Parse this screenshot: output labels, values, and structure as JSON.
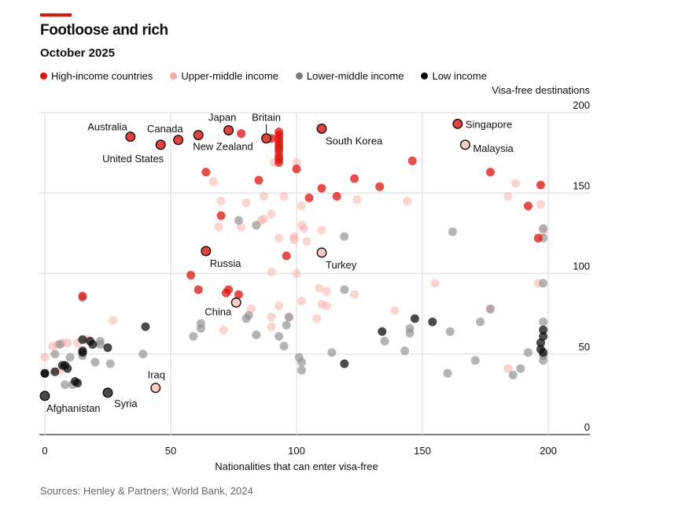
{
  "header": {
    "title": "Footloose and rich",
    "subtitle": "October 2025"
  },
  "legend": [
    {
      "key": "high",
      "label": "High-income countries",
      "color": "#e3120b"
    },
    {
      "key": "upper",
      "label": "Upper-middle income",
      "color": "#f7a99f"
    },
    {
      "key": "lower",
      "label": "Lower-middle income",
      "color": "#8c8c8c"
    },
    {
      "key": "low",
      "label": "Low income",
      "color": "#0d0d0d"
    }
  ],
  "source": "Sources: Henley & Partners; World Bank, 2024",
  "chart_data": {
    "type": "scatter",
    "title": "Footloose and rich",
    "subtitle": "October 2025",
    "xlabel": "Nationalities that can enter visa-free",
    "ylabel": "Visa-free destinations",
    "xlim": [
      -2,
      217
    ],
    "ylim": [
      0,
      200
    ],
    "xticks": [
      0,
      50,
      100,
      150,
      200
    ],
    "yticks": [
      0,
      50,
      100,
      150,
      200
    ],
    "grid": true,
    "legend_position": "top-left",
    "colors": {
      "high": "#e3120b",
      "upper": "#f7a99f",
      "lower": "#8c8c8c",
      "low": "#0d0d0d"
    },
    "highlighted": [
      {
        "name": "Australia",
        "x": 34,
        "y": 185,
        "group": "high",
        "label_pos": "above-left"
      },
      {
        "name": "United States",
        "x": 46,
        "y": 180,
        "group": "high",
        "label_pos": "below-left"
      },
      {
        "name": "Canada",
        "x": 53,
        "y": 183,
        "group": "high",
        "label_pos": "above-left"
      },
      {
        "name": "New Zealand",
        "x": 61,
        "y": 186,
        "group": "high",
        "label_pos": "below-right"
      },
      {
        "name": "Japan",
        "x": 73,
        "y": 189,
        "group": "high",
        "label_pos": "above"
      },
      {
        "name": "Britain",
        "x": 88,
        "y": 184,
        "group": "high",
        "label_pos": "above-leader"
      },
      {
        "name": "South Korea",
        "x": 110,
        "y": 190,
        "group": "high",
        "label_pos": "below-right"
      },
      {
        "name": "Singapore",
        "x": 164,
        "y": 193,
        "group": "high",
        "label_pos": "right"
      },
      {
        "name": "Malaysia",
        "x": 167,
        "y": 180,
        "group": "upper",
        "label_pos": "right"
      },
      {
        "name": "Russia",
        "x": 64,
        "y": 114,
        "group": "high",
        "label_pos": "below-right"
      },
      {
        "name": "Turkey",
        "x": 110,
        "y": 113,
        "group": "upper",
        "label_pos": "below-right"
      },
      {
        "name": "China",
        "x": 76,
        "y": 82,
        "group": "upper",
        "label_pos": "below-left"
      },
      {
        "name": "Iraq",
        "x": 44,
        "y": 29,
        "group": "upper",
        "label_pos": "above"
      },
      {
        "name": "Afghanistan",
        "x": 0,
        "y": 24,
        "group": "low",
        "label_pos": "below-right"
      },
      {
        "name": "Syria",
        "x": 25,
        "y": 26,
        "group": "low",
        "label_pos": "below-right"
      }
    ],
    "points": [
      {
        "x": 78,
        "y": 187,
        "g": "high"
      },
      {
        "x": 90,
        "y": 184,
        "g": "high"
      },
      {
        "x": 93,
        "y": 188,
        "g": "high"
      },
      {
        "x": 93,
        "y": 186,
        "g": "high"
      },
      {
        "x": 93,
        "y": 184,
        "g": "high"
      },
      {
        "x": 93,
        "y": 182,
        "g": "high"
      },
      {
        "x": 93,
        "y": 180,
        "g": "high"
      },
      {
        "x": 93,
        "y": 178,
        "g": "high"
      },
      {
        "x": 93,
        "y": 176,
        "g": "high"
      },
      {
        "x": 93,
        "y": 173,
        "g": "high"
      },
      {
        "x": 93,
        "y": 171,
        "g": "high"
      },
      {
        "x": 93,
        "y": 169,
        "g": "high"
      },
      {
        "x": 91,
        "y": 169,
        "g": "upper"
      },
      {
        "x": 100,
        "y": 169,
        "g": "upper"
      },
      {
        "x": 100,
        "y": 165,
        "g": "high"
      },
      {
        "x": 64,
        "y": 163,
        "g": "high"
      },
      {
        "x": 67,
        "y": 157,
        "g": "upper"
      },
      {
        "x": 85,
        "y": 158,
        "g": "high"
      },
      {
        "x": 146,
        "y": 170,
        "g": "high"
      },
      {
        "x": 123,
        "y": 159,
        "g": "high"
      },
      {
        "x": 110,
        "y": 153,
        "g": "high"
      },
      {
        "x": 133,
        "y": 154,
        "g": "high"
      },
      {
        "x": 177,
        "y": 163,
        "g": "high"
      },
      {
        "x": 187,
        "y": 156,
        "g": "upper"
      },
      {
        "x": 197,
        "y": 155,
        "g": "high"
      },
      {
        "x": 184,
        "y": 148,
        "g": "upper"
      },
      {
        "x": 192,
        "y": 142,
        "g": "high"
      },
      {
        "x": 197,
        "y": 143,
        "g": "upper"
      },
      {
        "x": 105,
        "y": 147,
        "g": "high"
      },
      {
        "x": 116,
        "y": 148,
        "g": "high"
      },
      {
        "x": 124,
        "y": 146,
        "g": "upper"
      },
      {
        "x": 144,
        "y": 145,
        "g": "upper"
      },
      {
        "x": 87,
        "y": 148,
        "g": "upper"
      },
      {
        "x": 95,
        "y": 148,
        "g": "upper"
      },
      {
        "x": 70,
        "y": 145,
        "g": "upper"
      },
      {
        "x": 80,
        "y": 144,
        "g": "upper"
      },
      {
        "x": 102,
        "y": 142,
        "g": "upper"
      },
      {
        "x": 70,
        "y": 136,
        "g": "high"
      },
      {
        "x": 90,
        "y": 137,
        "g": "upper"
      },
      {
        "x": 87,
        "y": 134,
        "g": "upper"
      },
      {
        "x": 86,
        "y": 133,
        "g": "upper"
      },
      {
        "x": 77,
        "y": 133,
        "g": "lower"
      },
      {
        "x": 84,
        "y": 130,
        "g": "lower"
      },
      {
        "x": 69,
        "y": 129,
        "g": "upper"
      },
      {
        "x": 78,
        "y": 129,
        "g": "upper"
      },
      {
        "x": 102,
        "y": 130,
        "g": "upper"
      },
      {
        "x": 103,
        "y": 128,
        "g": "upper"
      },
      {
        "x": 110,
        "y": 127,
        "g": "upper"
      },
      {
        "x": 119,
        "y": 123,
        "g": "lower"
      },
      {
        "x": 162,
        "y": 126,
        "g": "lower"
      },
      {
        "x": 93,
        "y": 122,
        "g": "upper"
      },
      {
        "x": 99,
        "y": 123,
        "g": "upper"
      },
      {
        "x": 99,
        "y": 121,
        "g": "upper"
      },
      {
        "x": 104,
        "y": 120,
        "g": "upper"
      },
      {
        "x": 196,
        "y": 122,
        "g": "high"
      },
      {
        "x": 198,
        "y": 128,
        "g": "lower"
      },
      {
        "x": 198,
        "y": 126,
        "g": "upper"
      },
      {
        "x": 198,
        "y": 122,
        "g": "lower"
      },
      {
        "x": 96,
        "y": 111,
        "g": "high"
      },
      {
        "x": 58,
        "y": 99,
        "g": "high"
      },
      {
        "x": 100,
        "y": 100,
        "g": "upper"
      },
      {
        "x": 90,
        "y": 101,
        "g": "upper"
      },
      {
        "x": 61,
        "y": 90,
        "g": "high"
      },
      {
        "x": 72,
        "y": 88,
        "g": "high"
      },
      {
        "x": 73,
        "y": 90,
        "g": "high"
      },
      {
        "x": 77,
        "y": 87,
        "g": "high"
      },
      {
        "x": 109,
        "y": 91,
        "g": "upper"
      },
      {
        "x": 119,
        "y": 90,
        "g": "lower"
      },
      {
        "x": 112,
        "y": 89,
        "g": "upper"
      },
      {
        "x": 123,
        "y": 87,
        "g": "upper"
      },
      {
        "x": 155,
        "y": 94,
        "g": "upper"
      },
      {
        "x": 196,
        "y": 94,
        "g": "upper"
      },
      {
        "x": 198,
        "y": 94,
        "g": "lower"
      },
      {
        "x": 15,
        "y": 86,
        "g": "high"
      },
      {
        "x": 15,
        "y": 85,
        "g": "lower"
      },
      {
        "x": 102,
        "y": 83,
        "g": "upper"
      },
      {
        "x": 110,
        "y": 81,
        "g": "upper"
      },
      {
        "x": 112,
        "y": 80,
        "g": "upper"
      },
      {
        "x": 93,
        "y": 80,
        "g": "upper"
      },
      {
        "x": 82,
        "y": 78,
        "g": "upper"
      },
      {
        "x": 139,
        "y": 77,
        "g": "upper"
      },
      {
        "x": 177,
        "y": 78,
        "g": "upper"
      },
      {
        "x": 177,
        "y": 78,
        "g": "lower"
      },
      {
        "x": 81,
        "y": 74,
        "g": "lower"
      },
      {
        "x": 80,
        "y": 72,
        "g": "lower"
      },
      {
        "x": 90,
        "y": 73,
        "g": "upper"
      },
      {
        "x": 97,
        "y": 73,
        "g": "lower"
      },
      {
        "x": 97,
        "y": 73,
        "g": "upper"
      },
      {
        "x": 108,
        "y": 72,
        "g": "upper"
      },
      {
        "x": 27,
        "y": 71,
        "g": "upper"
      },
      {
        "x": 147,
        "y": 72,
        "g": "low"
      },
      {
        "x": 154,
        "y": 70,
        "g": "low"
      },
      {
        "x": 173,
        "y": 70,
        "g": "lower"
      },
      {
        "x": 198,
        "y": 70,
        "g": "lower"
      },
      {
        "x": 62,
        "y": 69,
        "g": "lower"
      },
      {
        "x": 62,
        "y": 66,
        "g": "lower"
      },
      {
        "x": 40,
        "y": 67,
        "g": "low"
      },
      {
        "x": 71,
        "y": 65,
        "g": "upper"
      },
      {
        "x": 96,
        "y": 68,
        "g": "lower"
      },
      {
        "x": 90,
        "y": 67,
        "g": "upper"
      },
      {
        "x": 145,
        "y": 66,
        "g": "lower"
      },
      {
        "x": 145,
        "y": 63,
        "g": "lower"
      },
      {
        "x": 134,
        "y": 64,
        "g": "low"
      },
      {
        "x": 161,
        "y": 64,
        "g": "lower"
      },
      {
        "x": 198,
        "y": 65,
        "g": "low"
      },
      {
        "x": 198,
        "y": 61,
        "g": "low"
      },
      {
        "x": 197,
        "y": 57,
        "g": "low"
      },
      {
        "x": 59,
        "y": 61,
        "g": "lower"
      },
      {
        "x": 84,
        "y": 62,
        "g": "lower"
      },
      {
        "x": 93,
        "y": 61,
        "g": "lower"
      },
      {
        "x": 95,
        "y": 55,
        "g": "lower"
      },
      {
        "x": 135,
        "y": 58,
        "g": "lower"
      },
      {
        "x": 15,
        "y": 59,
        "g": "low"
      },
      {
        "x": 18,
        "y": 58,
        "g": "low"
      },
      {
        "x": 19,
        "y": 56,
        "g": "low"
      },
      {
        "x": 17,
        "y": 59,
        "g": "upper"
      },
      {
        "x": 22,
        "y": 58,
        "g": "lower"
      },
      {
        "x": 22,
        "y": 56,
        "g": "lower"
      },
      {
        "x": 25,
        "y": 54,
        "g": "low"
      },
      {
        "x": 7,
        "y": 57,
        "g": "upper"
      },
      {
        "x": 5,
        "y": 56,
        "g": "upper"
      },
      {
        "x": 6,
        "y": 56,
        "g": "lower"
      },
      {
        "x": 9,
        "y": 57,
        "g": "upper"
      },
      {
        "x": 13,
        "y": 57,
        "g": "upper"
      },
      {
        "x": 3,
        "y": 55,
        "g": "upper"
      },
      {
        "x": 15,
        "y": 52,
        "g": "low"
      },
      {
        "x": 15,
        "y": 51,
        "g": "low"
      },
      {
        "x": 15,
        "y": 49,
        "g": "lower"
      },
      {
        "x": 10,
        "y": 48,
        "g": "lower"
      },
      {
        "x": 4,
        "y": 50,
        "g": "lower"
      },
      {
        "x": 0,
        "y": 48,
        "g": "upper"
      },
      {
        "x": 39,
        "y": 50,
        "g": "lower"
      },
      {
        "x": 143,
        "y": 52,
        "g": "lower"
      },
      {
        "x": 192,
        "y": 51,
        "g": "lower"
      },
      {
        "x": 197,
        "y": 53,
        "g": "low"
      },
      {
        "x": 198,
        "y": 51,
        "g": "low"
      },
      {
        "x": 198,
        "y": 49,
        "g": "lower"
      },
      {
        "x": 198,
        "y": 46,
        "g": "lower"
      },
      {
        "x": 114,
        "y": 51,
        "g": "lower"
      },
      {
        "x": 101,
        "y": 48,
        "g": "lower"
      },
      {
        "x": 102,
        "y": 45,
        "g": "lower"
      },
      {
        "x": 102,
        "y": 40,
        "g": "lower"
      },
      {
        "x": 119,
        "y": 44,
        "g": "low"
      },
      {
        "x": 171,
        "y": 46,
        "g": "lower"
      },
      {
        "x": 184,
        "y": 41,
        "g": "upper"
      },
      {
        "x": 186,
        "y": 37,
        "g": "lower"
      },
      {
        "x": 189,
        "y": 41,
        "g": "lower"
      },
      {
        "x": 160,
        "y": 38,
        "g": "lower"
      },
      {
        "x": 20,
        "y": 45,
        "g": "lower"
      },
      {
        "x": 26,
        "y": 44,
        "g": "lower"
      },
      {
        "x": 8,
        "y": 43,
        "g": "low"
      },
      {
        "x": 9,
        "y": 41,
        "g": "low"
      },
      {
        "x": 7,
        "y": 43,
        "g": "low"
      },
      {
        "x": 4,
        "y": 39,
        "g": "low"
      },
      {
        "x": 6,
        "y": 40,
        "g": "upper"
      },
      {
        "x": 0,
        "y": 38,
        "g": "low"
      },
      {
        "x": 0,
        "y": 38,
        "g": "low"
      },
      {
        "x": 12,
        "y": 33,
        "g": "low"
      },
      {
        "x": 13,
        "y": 32,
        "g": "low"
      },
      {
        "x": 8,
        "y": 31,
        "g": "lower"
      },
      {
        "x": 11,
        "y": 31,
        "g": "lower"
      }
    ]
  }
}
